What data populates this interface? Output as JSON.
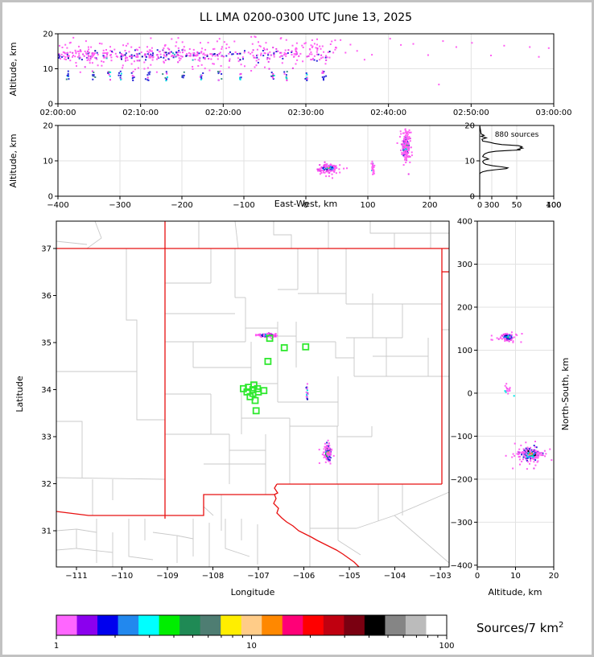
{
  "title": "LL LMA 0200-0300 UTC June 13, 2025",
  "panels": {
    "time_height": {
      "ylabel": "Altitude, km",
      "yticks": {
        "values": [
          0,
          10,
          20
        ],
        "labels": [
          "0",
          "10",
          "20"
        ]
      },
      "xticks": {
        "values": [
          0,
          10,
          20,
          30,
          40,
          50,
          60
        ],
        "labels": [
          "02:00:00",
          "02:10:00",
          "02:20:00",
          "02:30:00",
          "02:40:00",
          "02:50:00",
          "03:00:00"
        ]
      }
    },
    "ew_height": {
      "ylabel": "Altitude, km",
      "xlabel": "East-West, km",
      "yticks": {
        "values": [
          0,
          10,
          20
        ],
        "labels": [
          "0",
          "10",
          "20"
        ]
      },
      "xticks": {
        "values": [
          -400,
          -300,
          -200,
          -100,
          0,
          100,
          200,
          300,
          400
        ],
        "labels": [
          "−400",
          "−300",
          "−200",
          "−100",
          "0",
          "100",
          "200",
          "300",
          "400"
        ]
      }
    },
    "histogram": {
      "annotation": "880 sources",
      "yticks": {
        "values": [
          0,
          10,
          20
        ],
        "labels": [
          "0",
          "10",
          "20"
        ]
      },
      "xticks": {
        "values": [
          0,
          50,
          100
        ],
        "labels": [
          "0",
          "50",
          "100"
        ]
      }
    },
    "map": {
      "ylabel": "Latitude",
      "xlabel": "Longitude",
      "yticks": {
        "values": [
          31,
          32,
          33,
          34,
          35,
          36,
          37
        ],
        "labels": [
          "31",
          "32",
          "33",
          "34",
          "35",
          "36",
          "37"
        ]
      },
      "xticks": {
        "values": [
          -111,
          -110,
          -109,
          -108,
          -107,
          -106,
          -105,
          -104,
          -103
        ],
        "labels": [
          "−111",
          "−110",
          "−109",
          "−108",
          "−107",
          "−106",
          "−105",
          "−104",
          "−103"
        ]
      }
    },
    "ns_height": {
      "xlabel": "Altitude, km",
      "ylabel": "North-South, km",
      "xticks": {
        "values": [
          0,
          10,
          20
        ],
        "labels": [
          "0",
          "10",
          "20"
        ]
      },
      "yticks": {
        "values": [
          400,
          300,
          200,
          100,
          0,
          -100,
          -200,
          -300,
          -400
        ],
        "labels": [
          "400",
          "300",
          "200",
          "100",
          "0",
          "−100",
          "−200",
          "−300",
          "−400"
        ]
      }
    },
    "colorbar": {
      "label_main": "Sources/7 km",
      "label_sup": "2",
      "ticks": {
        "values": [
          1,
          10,
          100
        ],
        "labels": [
          "1",
          "10",
          "100"
        ]
      },
      "colors": [
        "#FF66FF",
        "#8B00EE",
        "#0000EE",
        "#2288EE",
        "#00FFFF",
        "#00EE00",
        "#1F8A55",
        "#4E7D72",
        "#FFEE00",
        "#FFCC88",
        "#FF8800",
        "#FF0077",
        "#FF0000",
        "#C00010",
        "#7A0011",
        "#000000",
        "#858585",
        "#BBBBBB",
        "#FFFFFF"
      ]
    }
  },
  "chart_data": {
    "type": "scatter",
    "axes": {
      "time_height": {
        "xlim_minutes": [
          0,
          60
        ],
        "ylim_km": [
          0,
          20
        ]
      },
      "ew_height": {
        "xlim_km": [
          -400,
          400
        ],
        "ylim_km": [
          0,
          20
        ]
      },
      "histogram": {
        "xlim_count": [
          0,
          100
        ],
        "ylim_km": [
          0,
          20
        ]
      },
      "map": {
        "xlim_lon": [
          -111.44,
          -102.81
        ],
        "ylim_lat": [
          30.23,
          37.58
        ]
      },
      "ns_height": {
        "xlim_km": [
          0,
          20
        ],
        "ylim_km": [
          -404,
          400
        ]
      }
    },
    "clusters": {
      "time_height": [
        {
          "seed": 1,
          "n": 230,
          "ux": [
            0,
            18
          ],
          "cy": 13.9,
          "sy": 0.8,
          "colors": [
            [
              "#FF5FF3",
              0.56
            ],
            [
              "#E93CE9",
              0.12
            ],
            [
              "#2A2AD8",
              0.2
            ],
            [
              "#0000A0",
              0.05
            ],
            [
              "#8A2BE2",
              0.04
            ],
            [
              "#27B5C8",
              0.03
            ]
          ]
        },
        {
          "seed": 2,
          "n": 110,
          "ux": [
            18,
            33
          ],
          "cy": 13.9,
          "sy": 0.9,
          "colors": [
            [
              "#FF5FF3",
              0.62
            ],
            [
              "#E93CE9",
              0.12
            ],
            [
              "#2A2AD8",
              0.18
            ],
            [
              "#0000A0",
              0.04
            ],
            [
              "#8A2BE2",
              0.04
            ]
          ]
        },
        {
          "seed": 3,
          "n": 120,
          "ux": [
            0,
            34
          ],
          "cy": 15.6,
          "sy": 1.3,
          "colors": [
            [
              "#FF5FF3",
              0.92
            ],
            [
              "#E93CE9",
              0.08
            ]
          ]
        },
        {
          "seed": 4,
          "n": 55,
          "ux": [
            0,
            34
          ],
          "cy": 11.2,
          "sy": 1.0,
          "colors": [
            [
              "#FF5FF3",
              0.9
            ],
            [
              "#E93CE9",
              0.1
            ]
          ]
        },
        {
          "seed": 5,
          "n": 25,
          "ux": [
            0,
            34
          ],
          "uy": [
            16.5,
            19.3
          ],
          "colors": [
            [
              "#FF5FF3",
              1.0
            ]
          ]
        },
        {
          "seed": 6,
          "times": [
            1.2,
            4.3,
            6.2,
            7.6,
            9.1,
            11.0,
            13.1,
            15.2,
            17.4,
            19.6,
            22.1,
            26.0,
            27.6,
            30.1,
            32.2
          ],
          "n": 8,
          "sx": 0.12,
          "uy": [
            6.6,
            9.4
          ],
          "colors": [
            [
              "#2A2AD8",
              0.45
            ],
            [
              "#00E5E5",
              0.18
            ],
            [
              "#3D8F86",
              0.12
            ],
            [
              "#E93CE9",
              0.15
            ],
            [
              "#FF5FF3",
              0.1
            ]
          ]
        },
        {
          "points": [
            [
              33.6,
              16.1
            ],
            [
              34.2,
              18.2
            ],
            [
              34.8,
              14.6
            ],
            [
              35.4,
              16.9
            ],
            [
              36.2,
              15.1
            ],
            [
              37.1,
              12.6
            ],
            [
              38.0,
              14.0
            ],
            [
              40.2,
              18.6
            ],
            [
              41.5,
              16.8
            ],
            [
              43.0,
              17.1
            ],
            [
              44.8,
              13.9
            ],
            [
              46.1,
              5.5
            ],
            [
              46.6,
              17.9
            ],
            [
              48.2,
              16.2
            ],
            [
              50.1,
              17.4
            ],
            [
              52.4,
              13.8
            ],
            [
              54.0,
              16.6
            ],
            [
              57.1,
              16.2
            ],
            [
              58.2,
              13.4
            ],
            [
              59.4,
              15.9
            ]
          ],
          "color": "#FF5FF3"
        }
      ],
      "ew_height": [
        {
          "seed": 11,
          "n": 120,
          "cx": 36,
          "sx": 6.5,
          "cy": 7.9,
          "sy": 0.5,
          "layers": {
            "core": [
              "#00D800",
              "#00E5E5",
              "#FFE800"
            ],
            "mid": [
              "#2A2AD8",
              "#1E90FF",
              "#0000A0"
            ],
            "fringe": [
              "#FF5FF3",
              "#E93CE9"
            ]
          }
        },
        {
          "seed": 12,
          "n": 25,
          "cx": 37,
          "sx": 9,
          "cy": 7.2,
          "sy": 1.0,
          "colors": [
            [
              "#FF5FF3",
              1.0
            ]
          ]
        },
        {
          "seed": 13,
          "n": 24,
          "cx": 108,
          "sx": 1.1,
          "cy": 8.2,
          "sy": 0.8,
          "colors": [
            [
              "#FF5FF3",
              0.7
            ],
            [
              "#E93CE9",
              0.15
            ],
            [
              "#2A2AD8",
              0.1
            ],
            [
              "#00E5E5",
              0.05
            ]
          ]
        },
        {
          "seed": 14,
          "n": 210,
          "cx": 161,
          "sx": 2.2,
          "cy": 13.9,
          "sy": 1.15,
          "layers": {
            "core": [
              "#FFE800",
              "#FF8C00",
              "#EE1111",
              "#00D800"
            ],
            "mid": [
              "#00D800",
              "#00E5E5",
              "#2A2AD8",
              "#1E90FF"
            ],
            "fringe": [
              "#FF5FF3",
              "#2A2AD8"
            ]
          }
        },
        {
          "seed": 15,
          "n": 90,
          "cx": 161,
          "sx": 4.2,
          "cy": 13.8,
          "sy": 2.6,
          "colors": [
            [
              "#FF5FF3",
              0.85
            ],
            [
              "#E93CE9",
              0.15
            ]
          ]
        },
        {
          "seed": 16,
          "n": 10,
          "ux": [
            156,
            168
          ],
          "uy": [
            17.2,
            19.6
          ],
          "colors": [
            [
              "#FF5FF3",
              1.0
            ]
          ]
        }
      ],
      "map": [
        {
          "seed": 21,
          "n": 95,
          "cx": -106.82,
          "sx": 0.1,
          "cy": 35.155,
          "sy": 0.02,
          "layers": {
            "core": [
              "#00D800",
              "#FFE800",
              "#EE1111",
              "#00E5E5"
            ],
            "mid": [
              "#2A2AD8",
              "#0000A0",
              "#1E90FF"
            ],
            "fringe": [
              "#FF5FF3",
              "#E93CE9"
            ]
          }
        },
        {
          "seed": 22,
          "n": 18,
          "cx": -106.82,
          "sx": 0.16,
          "cy": 35.16,
          "sy": 0.035,
          "colors": [
            [
              "#FF5FF3",
              1.0
            ]
          ]
        },
        {
          "seed": 23,
          "n": 15,
          "cx": -105.93,
          "sx": 0.012,
          "cy": 33.93,
          "sy": 0.1,
          "colors": [
            [
              "#FF5FF3",
              0.5
            ],
            [
              "#2A2AD8",
              0.25
            ],
            [
              "#0000A0",
              0.1
            ],
            [
              "#00E5E5",
              0.1
            ],
            [
              "#E93CE9",
              0.05
            ]
          ]
        },
        {
          "seed": 24,
          "n": 190,
          "cx": -105.47,
          "sx": 0.03,
          "cy": 32.66,
          "sy": 0.07,
          "layers": {
            "core": [
              "#FFE800",
              "#FF8C00",
              "#EE1111",
              "#00D800",
              "#7A0011"
            ],
            "mid": [
              "#00D800",
              "#00E5E5",
              "#2A2AD8",
              "#000000",
              "#8A2BE2"
            ],
            "fringe": [
              "#FF5FF3",
              "#2A2AD8"
            ]
          }
        },
        {
          "seed": 25,
          "n": 40,
          "cx": -105.47,
          "sx": 0.06,
          "cy": 32.65,
          "sy": 0.12,
          "colors": [
            [
              "#FF5FF3",
              1.0
            ]
          ]
        }
      ],
      "ns_height": [
        {
          "seed": 31,
          "n": 85,
          "cx": 8,
          "sx": 0.75,
          "cy": 130,
          "sy": 4,
          "layers": {
            "core": [
              "#00E5E5",
              "#00D800"
            ],
            "mid": [
              "#2A2AD8",
              "#0000A0",
              "#1E90FF"
            ],
            "fringe": [
              "#FF5FF3",
              "#E93CE9"
            ]
          }
        },
        {
          "seed": 32,
          "n": 15,
          "cx": 8,
          "sx": 1.6,
          "cy": 130,
          "sy": 8,
          "colors": [
            [
              "#FF5FF3",
              1.0
            ]
          ]
        },
        {
          "seed": 33,
          "n": 14,
          "cx": 8,
          "sx": 0.8,
          "cy": 10,
          "sy": 7,
          "colors": [
            [
              "#FF5FF3",
              0.75
            ],
            [
              "#E93CE9",
              0.1
            ],
            [
              "#00E5E5",
              0.15
            ]
          ]
        },
        {
          "seed": 34,
          "n": 200,
          "cx": 13.9,
          "sx": 1.15,
          "cy": -142,
          "sy": 6.5,
          "layers": {
            "core": [
              "#00D800",
              "#FFE800",
              "#FF8C00"
            ],
            "mid": [
              "#00E5E5",
              "#2A2AD8",
              "#1E90FF",
              "#000000"
            ],
            "fringe": [
              "#FF5FF3",
              "#2A2AD8"
            ]
          }
        },
        {
          "seed": 35,
          "n": 60,
          "cx": 13.5,
          "sx": 2.6,
          "cy": -143,
          "sy": 13,
          "colors": [
            [
              "#FF5FF3",
              0.9
            ],
            [
              "#E93CE9",
              0.1
            ]
          ]
        }
      ]
    },
    "map_squares": {
      "color": "#2FE82F",
      "positions": [
        [
          -106.43,
          34.89
        ],
        [
          -105.96,
          34.91
        ],
        [
          -106.79,
          34.6
        ],
        [
          -106.75,
          35.09
        ],
        [
          -107.33,
          34.02
        ],
        [
          -107.22,
          34.05
        ],
        [
          -107.12,
          34.0
        ],
        [
          -107.02,
          34.02
        ],
        [
          -107.25,
          33.95
        ],
        [
          -107.12,
          33.92
        ],
        [
          -107.0,
          33.95
        ],
        [
          -106.88,
          33.98
        ],
        [
          -107.1,
          34.1
        ],
        [
          -107.18,
          33.85
        ],
        [
          -107.07,
          33.77
        ],
        [
          -107.05,
          33.55
        ]
      ]
    },
    "histogram": {
      "total_sources": 880,
      "points": [
        [
          20,
          0
        ],
        [
          18.8,
          1
        ],
        [
          17.6,
          2
        ],
        [
          17.2,
          6
        ],
        [
          16.9,
          2
        ],
        [
          16.5,
          9
        ],
        [
          16.1,
          3
        ],
        [
          15.6,
          4
        ],
        [
          15.2,
          14
        ],
        [
          14.9,
          20
        ],
        [
          14.6,
          30
        ],
        [
          14.3,
          52
        ],
        [
          14.0,
          57
        ],
        [
          13.8,
          55
        ],
        [
          13.6,
          58
        ],
        [
          13.3,
          52
        ],
        [
          13.1,
          55
        ],
        [
          12.9,
          38
        ],
        [
          12.7,
          22
        ],
        [
          12.4,
          12
        ],
        [
          12.0,
          7
        ],
        [
          11.6,
          5
        ],
        [
          11.2,
          4
        ],
        [
          10.8,
          9
        ],
        [
          10.5,
          12
        ],
        [
          10.2,
          6
        ],
        [
          9.8,
          4
        ],
        [
          9.4,
          5
        ],
        [
          9.0,
          8
        ],
        [
          8.6,
          18
        ],
        [
          8.3,
          30
        ],
        [
          8.0,
          38
        ],
        [
          7.8,
          36
        ],
        [
          7.5,
          22
        ],
        [
          7.2,
          10
        ],
        [
          6.9,
          4
        ],
        [
          6.6,
          1
        ],
        [
          6.3,
          0
        ],
        [
          0,
          0
        ]
      ]
    }
  }
}
